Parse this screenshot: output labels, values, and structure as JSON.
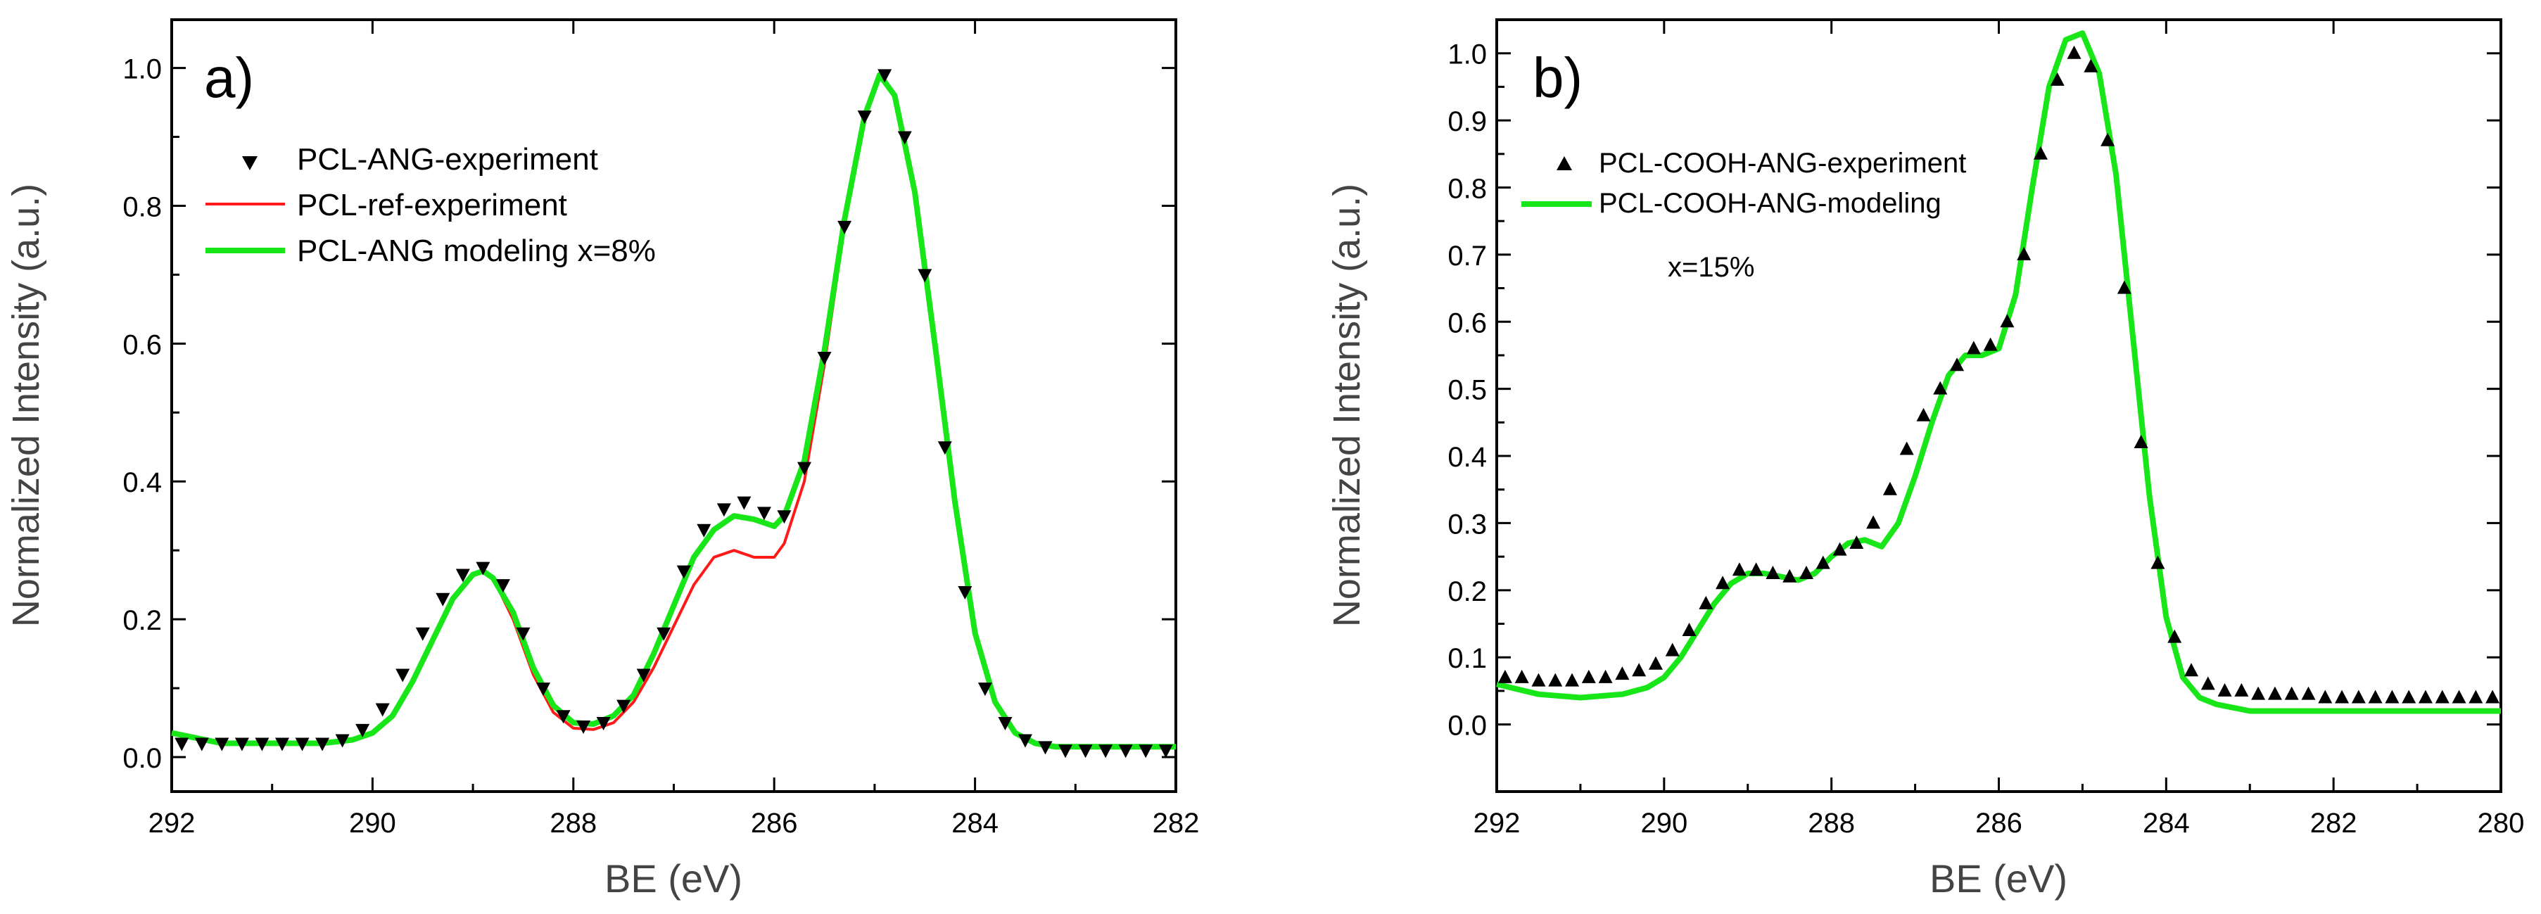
{
  "chart_data": [
    {
      "type": "scatter",
      "panel_label": "a)",
      "xlabel": "BE (eV)",
      "ylabel": "Normalized Intensity (a.u.)",
      "xlim": [
        292,
        282
      ],
      "ylim": [
        -0.05,
        1.07
      ],
      "x_ticks": [
        292,
        290,
        288,
        286,
        284,
        282
      ],
      "x_tick_labels": [
        "292",
        "290",
        "288",
        "286",
        "284",
        "282"
      ],
      "y_ticks": [
        0.0,
        0.2,
        0.4,
        0.6,
        0.8,
        1.0
      ],
      "y_tick_labels": [
        "0.0",
        "0.2",
        "0.4",
        "0.6",
        "0.8",
        "1.0"
      ],
      "legend_position": "top-left",
      "series": [
        {
          "name": "PCL-ANG-experiment",
          "kind": "markers",
          "marker": "triangle-down",
          "color": "#000000",
          "x": [
            291.9,
            291.7,
            291.5,
            291.3,
            291.1,
            290.9,
            290.7,
            290.5,
            290.3,
            290.1,
            289.9,
            289.7,
            289.5,
            289.3,
            289.1,
            288.9,
            288.7,
            288.5,
            288.3,
            288.1,
            287.9,
            287.7,
            287.5,
            287.3,
            287.1,
            286.9,
            286.7,
            286.5,
            286.3,
            286.1,
            285.9,
            285.7,
            285.5,
            285.3,
            285.1,
            284.9,
            284.7,
            284.5,
            284.3,
            284.1,
            283.9,
            283.7,
            283.5,
            283.3,
            283.1,
            282.9,
            282.7,
            282.5,
            282.3,
            282.1
          ],
          "y": [
            0.02,
            0.02,
            0.02,
            0.02,
            0.02,
            0.02,
            0.02,
            0.02,
            0.025,
            0.04,
            0.07,
            0.12,
            0.18,
            0.23,
            0.265,
            0.275,
            0.25,
            0.18,
            0.1,
            0.06,
            0.045,
            0.05,
            0.075,
            0.12,
            0.18,
            0.27,
            0.33,
            0.36,
            0.37,
            0.355,
            0.35,
            0.42,
            0.58,
            0.77,
            0.93,
            0.99,
            0.9,
            0.7,
            0.45,
            0.24,
            0.1,
            0.05,
            0.025,
            0.015,
            0.01,
            0.01,
            0.01,
            0.01,
            0.01,
            0.01
          ]
        },
        {
          "name": "PCL-ref-experiment",
          "kind": "line",
          "color": "#ff1a1a",
          "x": [
            292.0,
            291.5,
            291.0,
            290.5,
            290.2,
            290.0,
            289.8,
            289.6,
            289.4,
            289.2,
            289.0,
            288.9,
            288.8,
            288.6,
            288.4,
            288.2,
            288.0,
            287.8,
            287.6,
            287.4,
            287.2,
            287.0,
            286.8,
            286.6,
            286.4,
            286.2,
            286.0,
            285.9,
            285.7,
            285.5,
            285.3,
            285.1,
            284.95,
            284.8,
            284.6,
            284.4,
            284.2,
            284.0,
            283.8,
            283.6,
            283.4,
            283.2,
            283.0,
            282.5,
            282.0
          ],
          "y": [
            0.035,
            0.02,
            0.02,
            0.02,
            0.025,
            0.035,
            0.06,
            0.11,
            0.17,
            0.23,
            0.265,
            0.27,
            0.26,
            0.2,
            0.12,
            0.065,
            0.042,
            0.04,
            0.05,
            0.08,
            0.13,
            0.19,
            0.25,
            0.29,
            0.3,
            0.29,
            0.29,
            0.31,
            0.4,
            0.57,
            0.77,
            0.93,
            0.99,
            0.96,
            0.82,
            0.6,
            0.37,
            0.18,
            0.08,
            0.035,
            0.02,
            0.015,
            0.015,
            0.015,
            0.015
          ]
        },
        {
          "name": "PCL-ANG modeling x=8%",
          "kind": "line",
          "color": "#19e619",
          "x": [
            292.0,
            291.5,
            291.0,
            290.5,
            290.2,
            290.0,
            289.8,
            289.6,
            289.4,
            289.2,
            289.0,
            288.9,
            288.8,
            288.6,
            288.4,
            288.2,
            288.0,
            287.8,
            287.6,
            287.4,
            287.2,
            287.0,
            286.8,
            286.6,
            286.4,
            286.2,
            286.0,
            285.9,
            285.7,
            285.5,
            285.3,
            285.1,
            284.95,
            284.8,
            284.6,
            284.4,
            284.2,
            284.0,
            283.8,
            283.6,
            283.4,
            283.2,
            283.0,
            282.5,
            282.0
          ],
          "y": [
            0.035,
            0.02,
            0.02,
            0.02,
            0.025,
            0.035,
            0.06,
            0.11,
            0.17,
            0.23,
            0.265,
            0.27,
            0.26,
            0.21,
            0.13,
            0.075,
            0.05,
            0.048,
            0.06,
            0.09,
            0.15,
            0.22,
            0.29,
            0.33,
            0.35,
            0.345,
            0.335,
            0.35,
            0.43,
            0.59,
            0.78,
            0.93,
            0.99,
            0.96,
            0.82,
            0.6,
            0.37,
            0.18,
            0.08,
            0.035,
            0.02,
            0.015,
            0.015,
            0.015,
            0.015
          ]
        }
      ]
    },
    {
      "type": "scatter",
      "panel_label": "b)",
      "xlabel": "BE (eV)",
      "ylabel": "Normalized Intensity (a.u.)",
      "xlim": [
        292,
        280
      ],
      "ylim": [
        -0.1,
        1.05
      ],
      "x_ticks": [
        292,
        290,
        288,
        286,
        284,
        282,
        280
      ],
      "x_tick_labels": [
        "292",
        "290",
        "288",
        "286",
        "284",
        "282",
        "280"
      ],
      "y_ticks": [
        0.0,
        0.1,
        0.2,
        0.3,
        0.4,
        0.5,
        0.6,
        0.7,
        0.8,
        0.9,
        1.0
      ],
      "y_tick_labels": [
        "0.0",
        "0.1",
        "0.2",
        "0.3",
        "0.4",
        "0.5",
        "0.6",
        "0.7",
        "0.8",
        "0.9",
        "1.0"
      ],
      "legend_position": "top-left",
      "annotations": [
        "x=15%"
      ],
      "series": [
        {
          "name": "PCL-COOH-ANG-experiment",
          "kind": "markers",
          "marker": "triangle-up",
          "color": "#000000",
          "x": [
            291.9,
            291.7,
            291.5,
            291.3,
            291.1,
            290.9,
            290.7,
            290.5,
            290.3,
            290.1,
            289.9,
            289.7,
            289.5,
            289.3,
            289.1,
            288.9,
            288.7,
            288.5,
            288.3,
            288.1,
            287.9,
            287.7,
            287.5,
            287.3,
            287.1,
            286.9,
            286.7,
            286.5,
            286.3,
            286.1,
            285.9,
            285.7,
            285.5,
            285.3,
            285.1,
            284.9,
            284.7,
            284.5,
            284.3,
            284.1,
            283.9,
            283.7,
            283.5,
            283.3,
            283.1,
            282.9,
            282.7,
            282.5,
            282.3,
            282.1,
            281.9,
            281.7,
            281.5,
            281.3,
            281.1,
            280.9,
            280.7,
            280.5,
            280.3,
            280.1
          ],
          "y": [
            0.07,
            0.07,
            0.065,
            0.065,
            0.065,
            0.07,
            0.07,
            0.075,
            0.08,
            0.09,
            0.11,
            0.14,
            0.18,
            0.21,
            0.23,
            0.23,
            0.225,
            0.22,
            0.225,
            0.24,
            0.26,
            0.27,
            0.3,
            0.35,
            0.41,
            0.46,
            0.5,
            0.535,
            0.56,
            0.565,
            0.6,
            0.7,
            0.85,
            0.96,
            1.0,
            0.98,
            0.87,
            0.65,
            0.42,
            0.24,
            0.13,
            0.08,
            0.06,
            0.05,
            0.05,
            0.045,
            0.045,
            0.045,
            0.045,
            0.04,
            0.04,
            0.04,
            0.04,
            0.04,
            0.04,
            0.04,
            0.04,
            0.04,
            0.04,
            0.04
          ]
        },
        {
          "name": "PCL-COOH-ANG-modeling",
          "kind": "line",
          "color": "#19e619",
          "x": [
            292.0,
            291.5,
            291.0,
            290.5,
            290.2,
            290.0,
            289.8,
            289.6,
            289.4,
            289.2,
            289.0,
            288.8,
            288.6,
            288.4,
            288.2,
            288.0,
            287.8,
            287.6,
            287.4,
            287.2,
            287.0,
            286.8,
            286.6,
            286.4,
            286.2,
            286.0,
            285.8,
            285.6,
            285.4,
            285.2,
            285.0,
            284.8,
            284.6,
            284.4,
            284.2,
            284.0,
            283.8,
            283.6,
            283.4,
            283.2,
            283.0,
            282.5,
            282.0,
            281.5,
            281.0,
            280.5,
            280.0
          ],
          "y": [
            0.06,
            0.045,
            0.04,
            0.045,
            0.055,
            0.07,
            0.1,
            0.14,
            0.18,
            0.21,
            0.225,
            0.225,
            0.22,
            0.215,
            0.225,
            0.25,
            0.27,
            0.275,
            0.265,
            0.3,
            0.37,
            0.45,
            0.52,
            0.55,
            0.55,
            0.56,
            0.64,
            0.8,
            0.95,
            1.02,
            1.03,
            0.97,
            0.82,
            0.58,
            0.34,
            0.16,
            0.07,
            0.04,
            0.03,
            0.025,
            0.02,
            0.02,
            0.02,
            0.02,
            0.02,
            0.02,
            0.02
          ]
        }
      ]
    }
  ]
}
